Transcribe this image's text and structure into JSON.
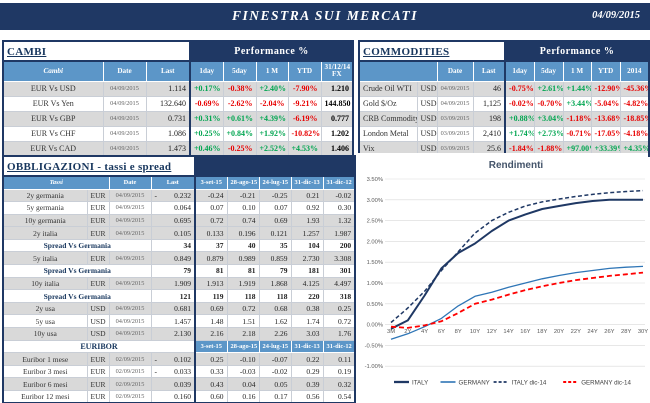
{
  "header": {
    "title": "FINESTRA SUI MERCATI",
    "date": "04/09/2015"
  },
  "colors": {
    "navy": "#1F3864",
    "header_blue": "#5C96C8",
    "row_shade": "#D9D9D9",
    "green": "#00A550",
    "red": "#E80000",
    "italy": "#1F3864",
    "germany": "#2E75B6",
    "germany_dec": "#FF0000"
  },
  "cambi": {
    "title": "CAMBI",
    "perf_header": "Performance  %",
    "columns": [
      "Cambi",
      "Date",
      "Last",
      "1day",
      "5day",
      "1 M",
      "YTD",
      "31/12/14 FX"
    ],
    "rows": [
      {
        "name": "EUR Vs USD",
        "date": "04/09/2015",
        "last": "1.114",
        "perf": [
          "+0.17%",
          "-0.38%",
          "+2.40%",
          "-7.90%"
        ],
        "fx": "1.210",
        "shade": true
      },
      {
        "name": "EUR Vs Yen",
        "date": "04/09/2015",
        "last": "132.640",
        "perf": [
          "-0.69%",
          "-2.62%",
          "-2.04%",
          "-9.21%"
        ],
        "fx": "144.850",
        "shade": false
      },
      {
        "name": "EUR Vs GBP",
        "date": "04/09/2015",
        "last": "0.731",
        "perf": [
          "+0.31%",
          "+0.61%",
          "+4.39%",
          "-6.19%"
        ],
        "fx": "0.777",
        "shade": true
      },
      {
        "name": "EUR Vs CHF",
        "date": "04/09/2015",
        "last": "1.086",
        "perf": [
          "+0.25%",
          "+0.84%",
          "+1.92%",
          "-10.82%"
        ],
        "fx": "1.202",
        "shade": false
      },
      {
        "name": "EUR Vs CAD",
        "date": "04/09/2015",
        "last": "1.473",
        "perf": [
          "+0.46%",
          "-0.25%",
          "+2.52%",
          "+4.53%"
        ],
        "fx": "1.406",
        "shade": true
      }
    ]
  },
  "commodities": {
    "title": "COMMODITIES",
    "perf_header": "Performance  %",
    "columns": [
      "Date",
      "Last",
      "1day",
      "5day",
      "1 M",
      "YTD",
      "2014"
    ],
    "rows": [
      {
        "name": "Crude Oil WTI",
        "ccy": "USD",
        "date": "04/09/2015",
        "last": "46",
        "perf": [
          "-0.75%",
          "+2.61%",
          "+1.44%",
          "-12.90%",
          "-45.36%"
        ],
        "shade": true
      },
      {
        "name": "Gold $/Oz",
        "ccy": "USD",
        "date": "04/09/2015",
        "last": "1,125",
        "perf": [
          "-0.02%",
          "-0.70%",
          "+3.44%",
          "-5.04%",
          "-4.82%"
        ],
        "shade": false
      },
      {
        "name": "CRB Commodity",
        "ccy": "USD",
        "date": "03/09/2015",
        "last": "198",
        "perf": [
          "+0.88%",
          "+3.04%",
          "-1.18%",
          "-13.68%",
          "-18.85%"
        ],
        "shade": true
      },
      {
        "name": "London Metal",
        "ccy": "USD",
        "date": "03/09/2015",
        "last": "2,410",
        "perf": [
          "+1.74%",
          "+2.73%",
          "-0.71%",
          "-17.05%",
          "-4.18%"
        ],
        "shade": false
      },
      {
        "name": "Vix",
        "ccy": "USD",
        "date": "03/09/2015",
        "last": "25.6",
        "perf": [
          "-1.84%",
          "-1.88%",
          "+97.00%",
          "+33.39%",
          "+4.35%"
        ],
        "shade": true
      }
    ]
  },
  "obbligazioni": {
    "title": "OBBLIGAZIONI - tassi e spread",
    "columns": [
      "Tassi",
      "Date",
      "Last",
      "3-set-15",
      "28-ago-15",
      "24-lug-15",
      "31-dic-13",
      "31-dic-12"
    ],
    "rows": [
      {
        "type": "data",
        "name": "2y germania",
        "ccy": "EUR",
        "date": "04/09/2015",
        "neg": true,
        "last": "0.232",
        "vals": [
          "-0.24",
          "-0.21",
          "-0.25",
          "0.21",
          "-0.02"
        ],
        "shade": true
      },
      {
        "type": "data",
        "name": "5y germania",
        "ccy": "EUR",
        "date": "04/09/2015",
        "neg": false,
        "last": "0.064",
        "vals": [
          "0.07",
          "0.10",
          "0.07",
          "0.92",
          "0.30"
        ],
        "shade": false
      },
      {
        "type": "data",
        "name": "10y germania",
        "ccy": "EUR",
        "date": "04/09/2015",
        "neg": false,
        "last": "0.695",
        "vals": [
          "0.72",
          "0.74",
          "0.69",
          "1.93",
          "1.32"
        ],
        "shade": true
      },
      {
        "type": "data",
        "name": "2y italia",
        "ccy": "EUR",
        "date": "04/09/2015",
        "neg": false,
        "last": "0.105",
        "vals": [
          "0.133",
          "0.196",
          "0.121",
          "1.257",
          "1.987"
        ],
        "shade": true
      },
      {
        "type": "spread",
        "label": "Spread Vs Germania",
        "last": "34",
        "vals": [
          "37",
          "40",
          "35",
          "104",
          "200"
        ],
        "shade": false
      },
      {
        "type": "data",
        "name": "5y italia",
        "ccy": "EUR",
        "date": "04/09/2015",
        "neg": false,
        "last": "0.849",
        "vals": [
          "0.879",
          "0.989",
          "0.859",
          "2.730",
          "3.308"
        ],
        "shade": true
      },
      {
        "type": "spread",
        "label": "Spread Vs Germania",
        "last": "79",
        "vals": [
          "81",
          "81",
          "79",
          "181",
          "301"
        ],
        "shade": false
      },
      {
        "type": "data",
        "name": "10y italia",
        "ccy": "EUR",
        "date": "04/09/2015",
        "neg": false,
        "last": "1.909",
        "vals": [
          "1.913",
          "1.919",
          "1.868",
          "4.125",
          "4.497"
        ],
        "shade": true
      },
      {
        "type": "spread",
        "label": "Spread Vs Germania",
        "last": "121",
        "vals": [
          "119",
          "118",
          "118",
          "220",
          "318"
        ],
        "shade": false
      },
      {
        "type": "data",
        "name": "2y usa",
        "ccy": "USD",
        "date": "04/09/2015",
        "neg": false,
        "last": "0.681",
        "vals": [
          "0.69",
          "0.72",
          "0.68",
          "0.38",
          "0.25"
        ],
        "shade": true
      },
      {
        "type": "data",
        "name": "5y usa",
        "ccy": "USD",
        "date": "04/09/2015",
        "neg": false,
        "last": "1.457",
        "vals": [
          "1.48",
          "1.51",
          "1.62",
          "1.74",
          "0.72"
        ],
        "shade": false
      },
      {
        "type": "data",
        "name": "10y usa",
        "ccy": "USD",
        "date": "04/09/2015",
        "neg": false,
        "last": "2.130",
        "vals": [
          "2.16",
          "2.18",
          "2.26",
          "3.03",
          "1.76"
        ],
        "shade": true
      }
    ]
  },
  "euribor": {
    "title": "EURIBOR",
    "columns": [
      "3-set-15",
      "28-ago-15",
      "24-lug-15",
      "31-dic-13",
      "31-dic-12"
    ],
    "rows": [
      {
        "name": "Euribor 1 mese",
        "ccy": "EUR",
        "date": "02/09/2015",
        "neg": true,
        "last": "0.102",
        "vals": [
          "0.25",
          "-0.10",
          "-0.07",
          "0.22",
          "0.11"
        ],
        "shade": true
      },
      {
        "name": "Euribor 3 mesi",
        "ccy": "EUR",
        "date": "02/09/2015",
        "neg": true,
        "last": "0.033",
        "vals": [
          "0.33",
          "-0.03",
          "-0.02",
          "0.29",
          "0.19"
        ],
        "shade": false
      },
      {
        "name": "Euribor 6 mesi",
        "ccy": "EUR",
        "date": "02/09/2015",
        "neg": false,
        "last": "0.039",
        "vals": [
          "0.43",
          "0.04",
          "0.05",
          "0.39",
          "0.32"
        ],
        "shade": true
      },
      {
        "name": "Euribor 12 mesi",
        "ccy": "EUR",
        "date": "02/09/2015",
        "neg": false,
        "last": "0.160",
        "vals": [
          "0.60",
          "0.16",
          "0.17",
          "0.56",
          "0.54"
        ],
        "shade": false
      }
    ]
  },
  "chart_data": {
    "type": "line",
    "title": "Rendimenti",
    "xlabel": "",
    "ylabel": "",
    "ylim": [
      -1.0,
      3.5
    ],
    "grid": true,
    "legend_position": "bottom",
    "yticks": [
      "3.50%",
      "3.00%",
      "2.50%",
      "2.00%",
      "1.50%",
      "1.00%",
      "0.50%",
      "0.00%",
      "-0.50%",
      "-1.00%"
    ],
    "x": [
      "3M",
      "2Y",
      "4Y",
      "6Y",
      "8Y",
      "10Y",
      "12Y",
      "14Y",
      "16Y",
      "18Y",
      "20Y",
      "22Y",
      "24Y",
      "26Y",
      "28Y",
      "30Y"
    ],
    "series": [
      {
        "id": "italy",
        "name": "ITALY",
        "color": "#1F3864",
        "width": 2,
        "dash": "",
        "values": [
          -0.1,
          0.1,
          0.7,
          1.35,
          1.72,
          1.95,
          2.25,
          2.5,
          2.65,
          2.78,
          2.85,
          2.92,
          2.97,
          3.0,
          3.0,
          3.0
        ]
      },
      {
        "id": "germany",
        "name": "GERMANY",
        "color": "#2E75B6",
        "width": 1.3,
        "dash": "",
        "values": [
          -0.35,
          -0.22,
          -0.05,
          0.15,
          0.45,
          0.68,
          0.78,
          0.9,
          1.0,
          1.1,
          1.18,
          1.25,
          1.3,
          1.35,
          1.38,
          1.4
        ]
      },
      {
        "id": "italy-dic-14",
        "name": "ITALY dic-14",
        "color": "#1F3864",
        "width": 1.5,
        "dash": "4 2.5",
        "values": [
          0.05,
          0.4,
          0.8,
          1.3,
          1.75,
          2.2,
          2.5,
          2.7,
          2.85,
          2.95,
          3.02,
          3.08,
          3.13,
          3.17,
          3.2,
          3.22
        ]
      },
      {
        "id": "germany-dic-14",
        "name": "GERMANY dic-14",
        "color": "#FF0000",
        "width": 1.8,
        "dash": "5 3",
        "values": [
          -0.05,
          -0.08,
          -0.02,
          0.08,
          0.28,
          0.5,
          0.6,
          0.72,
          0.83,
          0.92,
          1.0,
          1.07,
          1.12,
          1.17,
          1.21,
          1.25
        ]
      }
    ]
  }
}
